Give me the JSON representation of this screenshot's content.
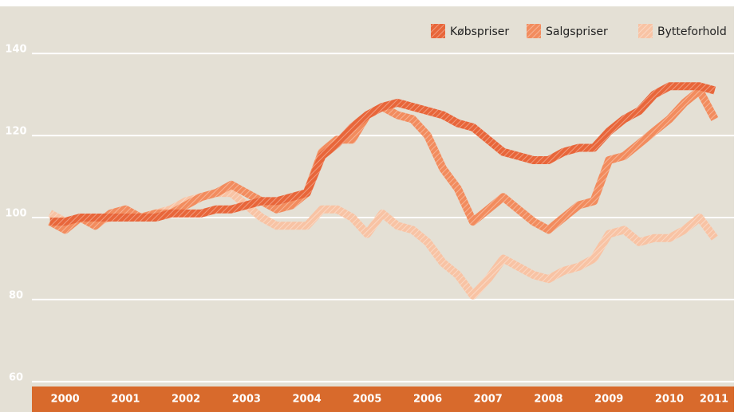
{
  "chart_data": {
    "type": "line",
    "x": [
      1999.75,
      2000,
      2000.25,
      2000.5,
      2000.75,
      2001,
      2001.25,
      2001.5,
      2001.75,
      2002,
      2002.25,
      2002.5,
      2002.75,
      2003,
      2003.25,
      2003.5,
      2003.75,
      2004,
      2004.25,
      2004.5,
      2004.75,
      2005,
      2005.25,
      2005.5,
      2005.75,
      2006,
      2006.25,
      2006.5,
      2006.75,
      2007,
      2007.25,
      2007.5,
      2007.75,
      2008,
      2008.25,
      2008.5,
      2008.75,
      2009,
      2009.25,
      2009.5,
      2009.75,
      2010,
      2010.25,
      2010.5,
      2010.75
    ],
    "series": [
      {
        "name": "Købspriser",
        "color": "#e8663a",
        "values": [
          99,
          99,
          100,
          100,
          100,
          100,
          100,
          100,
          101,
          101,
          101,
          102,
          102,
          103,
          104,
          104,
          105,
          106,
          115,
          118,
          122,
          125,
          127,
          128,
          127,
          126,
          125,
          123,
          122,
          119,
          116,
          115,
          114,
          114,
          116,
          117,
          117,
          121,
          124,
          126,
          130,
          132,
          132,
          132,
          131
        ]
      },
      {
        "name": "Salgspriser",
        "color": "#f28c5e",
        "values": [
          99,
          97,
          100,
          98,
          101,
          102,
          100,
          101,
          101,
          103,
          105,
          106,
          108,
          106,
          104,
          102,
          103,
          106,
          116,
          119,
          119,
          125,
          127,
          125,
          124,
          120,
          112,
          107,
          99,
          102,
          105,
          102,
          99,
          97,
          100,
          103,
          104,
          114,
          115,
          118,
          121,
          124,
          128,
          131,
          124
        ]
      },
      {
        "name": "Bytteforhold",
        "color": "#f8c3a4",
        "values": [
          101,
          99,
          100,
          99,
          100,
          101,
          100,
          101,
          102,
          104,
          105,
          106,
          106,
          103,
          100,
          98,
          98,
          98,
          102,
          102,
          100,
          96,
          101,
          98,
          97,
          94,
          89,
          86,
          81,
          85,
          90,
          88,
          86,
          85,
          87,
          88,
          90,
          96,
          97,
          94,
          95,
          95,
          97,
          100,
          95
        ]
      }
    ],
    "xlim": [
      1999.45,
      2011.07
    ],
    "xticks": [
      2000,
      2001,
      2002,
      2003,
      2004,
      2005,
      2006,
      2007,
      2008,
      2009,
      2010,
      {
        "value": 2010.74,
        "label": "2011"
      }
    ],
    "ylim": [
      58.8,
      151.5
    ],
    "yticks": [
      60,
      80,
      100,
      120,
      140
    ],
    "grid": true,
    "legend": "top-right"
  }
}
